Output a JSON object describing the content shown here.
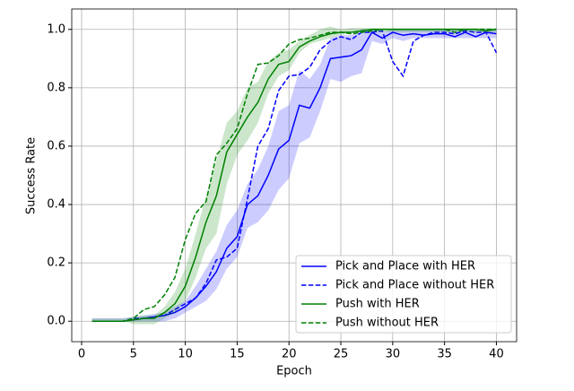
{
  "chart_data": {
    "type": "line",
    "x_label": "Epoch",
    "y_label": "Success Rate",
    "x": [
      1,
      2,
      3,
      4,
      5,
      6,
      7,
      8,
      9,
      10,
      11,
      12,
      13,
      14,
      15,
      16,
      17,
      18,
      19,
      20,
      21,
      22,
      23,
      24,
      25,
      26,
      27,
      28,
      29,
      30,
      31,
      32,
      33,
      34,
      35,
      36,
      37,
      38,
      39,
      40
    ],
    "xlim": [
      -0.95,
      41.95
    ],
    "ylim": [
      -0.07,
      1.07
    ],
    "xticks": [
      0,
      5,
      10,
      15,
      20,
      25,
      30,
      35,
      40
    ],
    "yticks": [
      {
        "value": 0,
        "label": "0.0"
      },
      0.2,
      0.4,
      0.6,
      0.8,
      {
        "value": 1,
        "label": "1.0"
      }
    ],
    "grid": true,
    "legend": "lower right",
    "series": [
      {
        "name": "Pick and Place with HER",
        "color": "#0000ff",
        "linestyle": "solid",
        "values": [
          0,
          0,
          0,
          0,
          0.005,
          0.01,
          0.015,
          0.02,
          0.03,
          0.05,
          0.08,
          0.12,
          0.17,
          0.25,
          0.29,
          0.4,
          0.43,
          0.5,
          0.59,
          0.62,
          0.74,
          0.73,
          0.8,
          0.9,
          0.905,
          0.91,
          0.93,
          0.99,
          0.97,
          0.99,
          0.98,
          0.985,
          0.98,
          0.985,
          0.985,
          0.975,
          0.99,
          0.975,
          0.99,
          0.985
        ],
        "lower": [
          0,
          0,
          0,
          0,
          0,
          0,
          0,
          0,
          0.01,
          0.03,
          0.05,
          0.07,
          0.11,
          0.18,
          0.22,
          0.32,
          0.34,
          0.38,
          0.45,
          0.49,
          0.61,
          0.63,
          0.72,
          0.83,
          0.82,
          0.84,
          0.85,
          0.96,
          0.95,
          0.97,
          0.96,
          0.97,
          0.97,
          0.97,
          0.97,
          0.97,
          0.97,
          0.97,
          0.97,
          0.97
        ],
        "upper": [
          0.01,
          0.01,
          0.01,
          0.01,
          0.015,
          0.02,
          0.025,
          0.03,
          0.05,
          0.07,
          0.12,
          0.18,
          0.24,
          0.33,
          0.38,
          0.47,
          0.52,
          0.6,
          0.72,
          0.74,
          0.86,
          0.83,
          0.88,
          0.97,
          0.98,
          0.98,
          1.0,
          1.0,
          0.99,
          1.0,
          1.0,
          1.0,
          1.0,
          1.0,
          1.0,
          1.0,
          1.0,
          1.0,
          1.0,
          1.0
        ]
      },
      {
        "name": "Pick and Place without HER",
        "color": "#0000ff",
        "linestyle": "dashed",
        "values": [
          0,
          0,
          0,
          0,
          0.01,
          0.01,
          0.015,
          0.02,
          0.04,
          0.06,
          0.08,
          0.13,
          0.21,
          0.22,
          0.25,
          0.42,
          0.6,
          0.66,
          0.79,
          0.84,
          0.845,
          0.87,
          0.93,
          0.96,
          0.975,
          0.965,
          0.99,
          0.99,
          0.995,
          0.89,
          0.84,
          0.96,
          0.98,
          0.99,
          0.99,
          0.985,
          0.995,
          0.99,
          0.99,
          0.92
        ]
      },
      {
        "name": "Push with HER",
        "color": "#008000",
        "linestyle": "solid",
        "values": [
          0,
          0,
          0,
          0,
          0.005,
          0.01,
          0.01,
          0.03,
          0.06,
          0.12,
          0.22,
          0.34,
          0.43,
          0.58,
          0.64,
          0.7,
          0.75,
          0.83,
          0.88,
          0.89,
          0.94,
          0.96,
          0.975,
          0.985,
          0.99,
          0.99,
          0.995,
          1,
          1,
          1,
          1,
          1,
          1,
          1,
          1,
          1,
          1,
          1,
          0.995,
          1
        ],
        "lower": [
          0,
          0,
          0,
          0,
          -0.01,
          -0.01,
          -0.01,
          0.01,
          0.03,
          0.07,
          0.15,
          0.25,
          0.3,
          0.47,
          0.57,
          0.62,
          0.68,
          0.78,
          0.84,
          0.86,
          0.92,
          0.95,
          0.96,
          0.97,
          0.98,
          0.99,
          0.99,
          0.99,
          0.99,
          0.99,
          0.99,
          0.99,
          0.99,
          0.99,
          0.99,
          0.99,
          0.99,
          0.99,
          0.99,
          0.99
        ],
        "upper": [
          0.01,
          0.01,
          0.01,
          0.01,
          0.015,
          0.02,
          0.02,
          0.05,
          0.1,
          0.18,
          0.3,
          0.43,
          0.55,
          0.68,
          0.72,
          0.8,
          0.82,
          0.89,
          0.92,
          0.93,
          0.96,
          0.98,
          1.0,
          1.01,
          1.0,
          1.005,
          1.005,
          1.005,
          1.005,
          1.005,
          1.005,
          1.005,
          1.005,
          1.005,
          1.005,
          1.005,
          1.005,
          1.005,
          1.005,
          1.005
        ]
      },
      {
        "name": "Push without HER",
        "color": "#008000",
        "linestyle": "dashed",
        "values": [
          0,
          0,
          0,
          0,
          0.01,
          0.04,
          0.05,
          0.09,
          0.15,
          0.28,
          0.37,
          0.41,
          0.57,
          0.61,
          0.66,
          0.78,
          0.88,
          0.885,
          0.91,
          0.95,
          0.965,
          0.97,
          0.98,
          0.99,
          0.99,
          0.985,
          0.99,
          0.995,
          1,
          1,
          1,
          1,
          1,
          1,
          1,
          0.99,
          1,
          1,
          1,
          1
        ]
      }
    ]
  }
}
